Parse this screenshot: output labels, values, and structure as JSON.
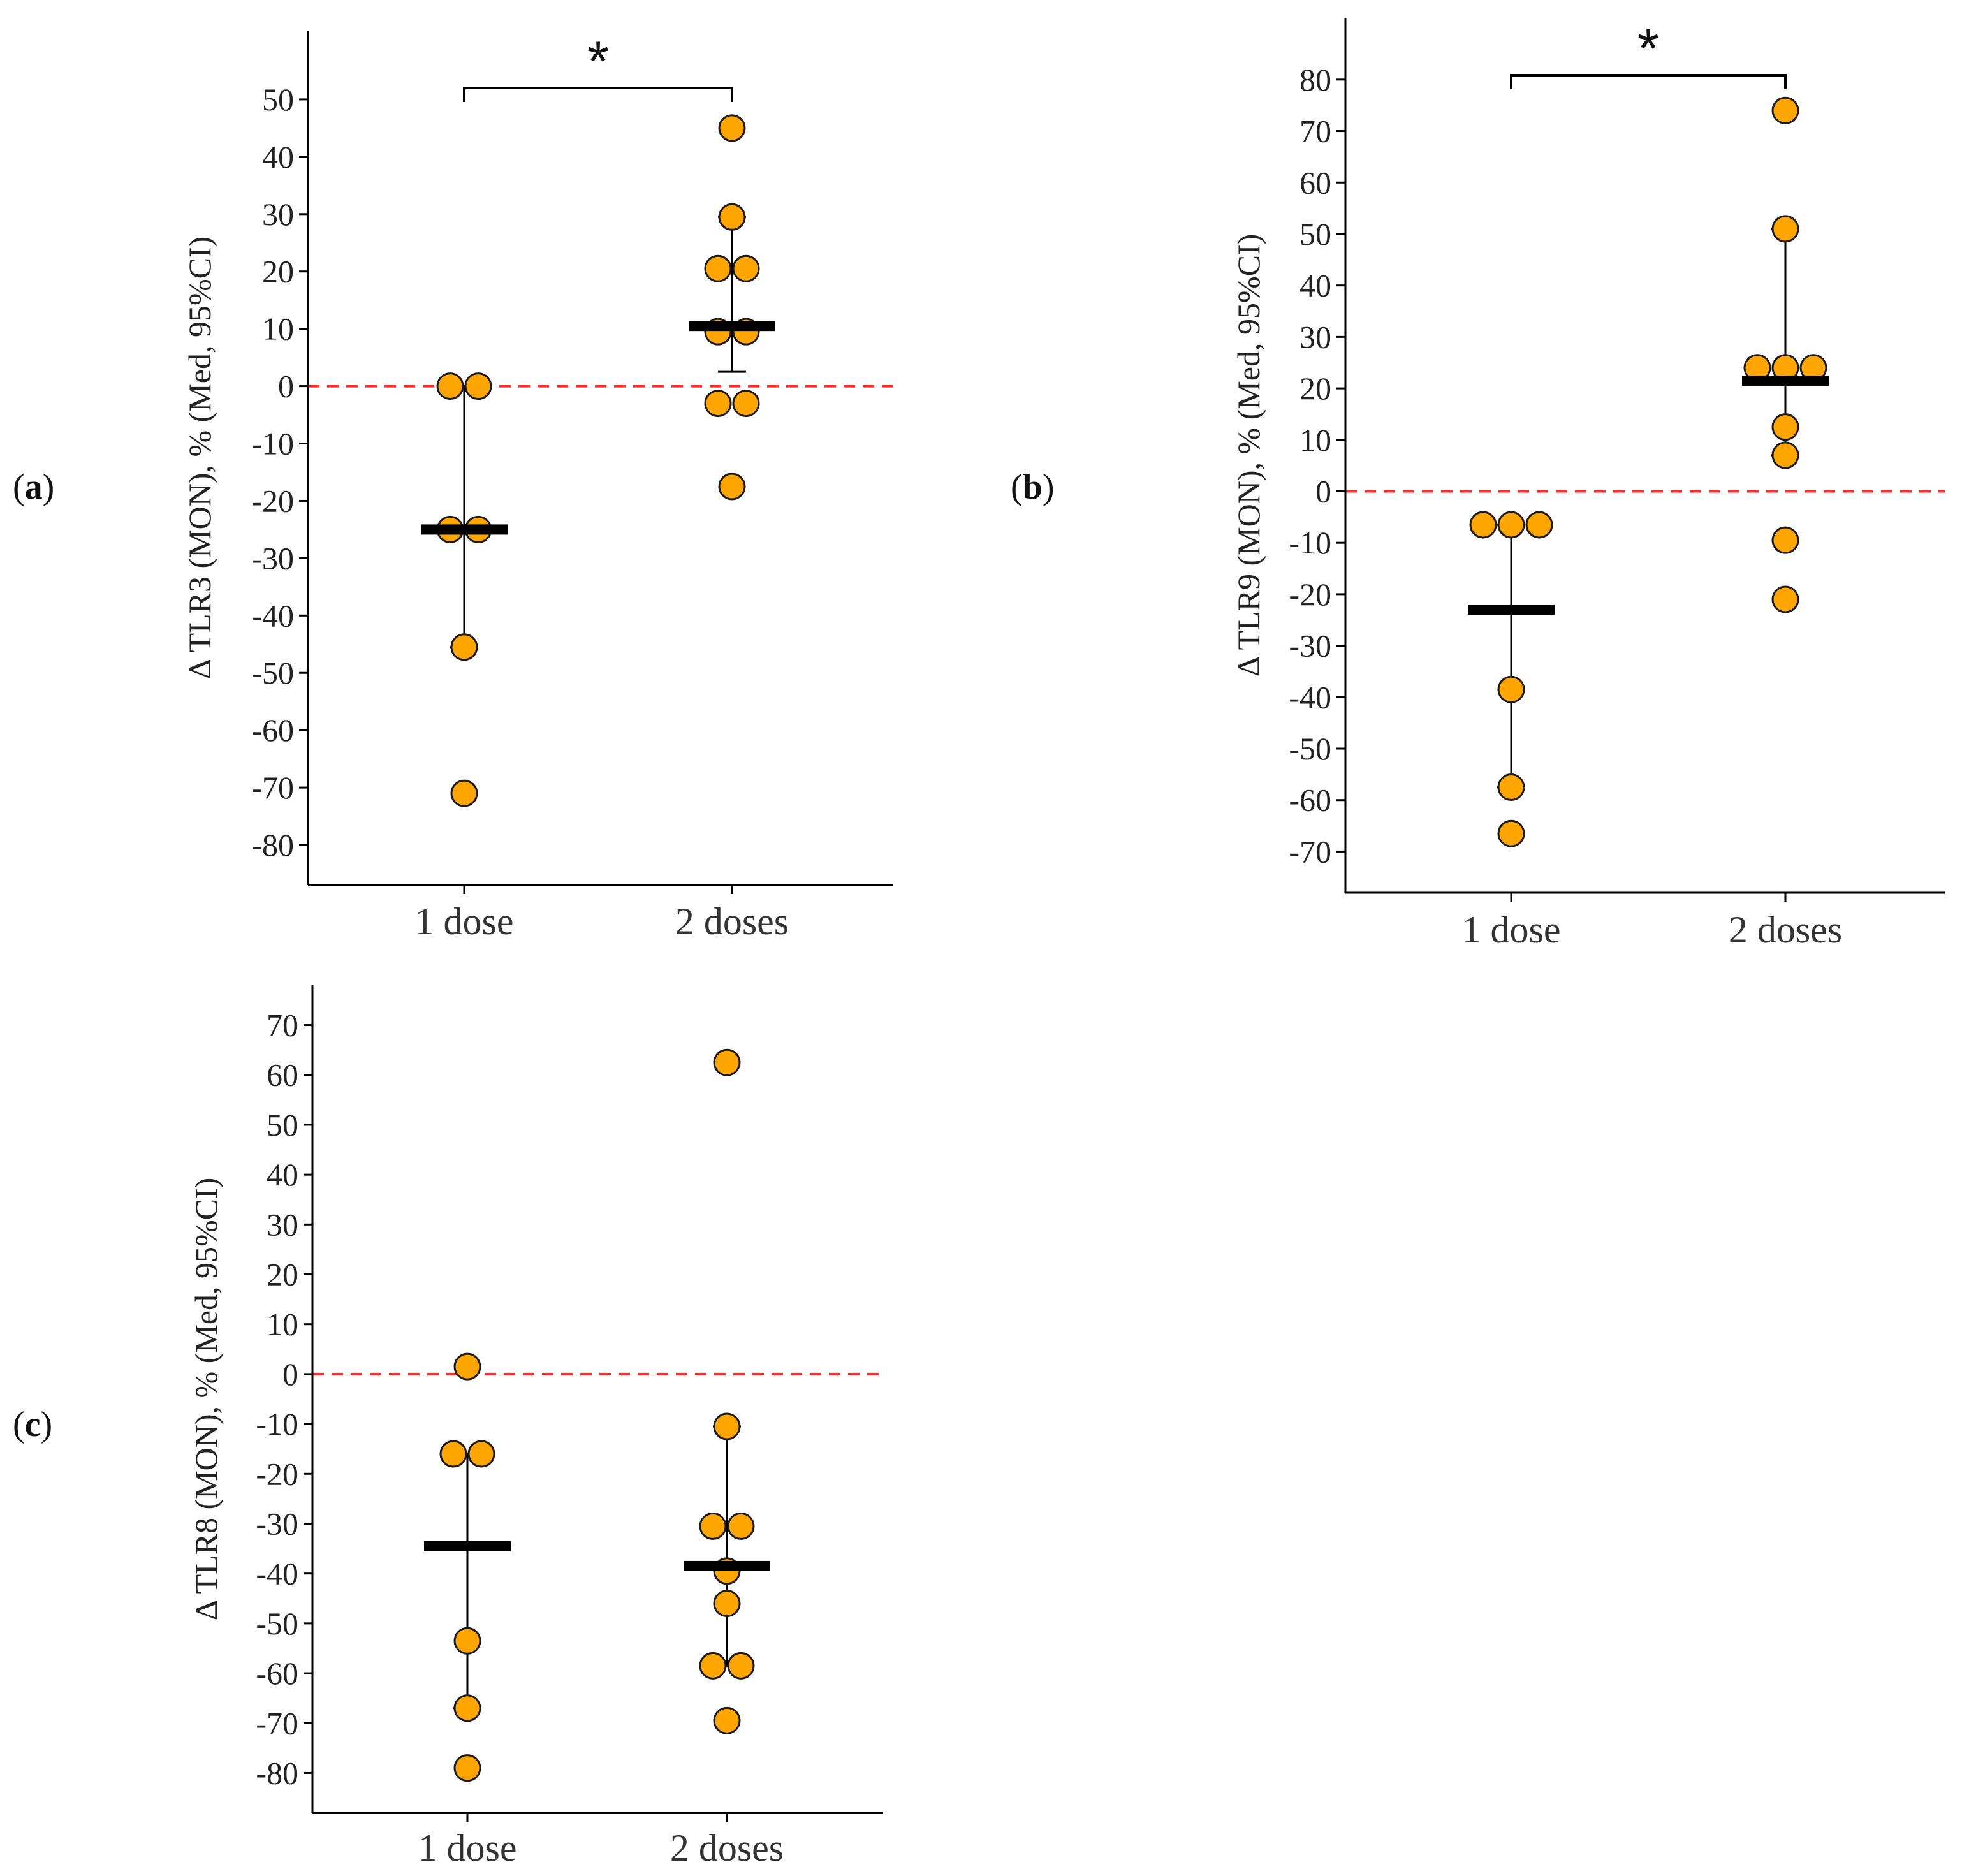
{
  "colors": {
    "point_fill": "#FFA500",
    "point_stroke": "#1a1a1a",
    "median_bar": "#000000",
    "ci_line": "#000000",
    "reference_line": "#FF2A2A",
    "axis": "#000000"
  },
  "chart_data": [
    {
      "type": "scatter",
      "panel_label": "(a)",
      "panel_letter": "a",
      "title": "",
      "xlabel": "",
      "ylabel": "Δ TLR3 (MON), % (Med, 95%CI)",
      "categories": [
        "1 dose",
        "2 doses"
      ],
      "ylim": [
        -87,
        62
      ],
      "yticks": [
        -80,
        -70,
        -60,
        -50,
        -40,
        -30,
        -20,
        -10,
        0,
        10,
        20,
        30,
        40,
        50
      ],
      "reference_line": {
        "y": 0,
        "style": "dashed",
        "color": "red"
      },
      "grid": false,
      "series": [
        {
          "category": "1 dose",
          "points": [
            0,
            0,
            -25,
            -25,
            -45.5,
            -71
          ],
          "median": -25,
          "ci": [
            -45.5,
            0
          ]
        },
        {
          "category": "2 doses",
          "points": [
            45,
            29.5,
            20.5,
            20.5,
            9.5,
            9.5,
            -3,
            -3,
            -17.5
          ],
          "median": 10.5,
          "ci": [
            2.5,
            29.5
          ]
        }
      ],
      "significance": {
        "between": [
          "1 dose",
          "2 doses"
        ],
        "label": "*"
      }
    },
    {
      "type": "scatter",
      "panel_label": "(b)",
      "panel_letter": "b",
      "title": "",
      "xlabel": "",
      "ylabel": "Δ TLR9 (MON), % (Med, 95%CI)",
      "categories": [
        "1 dose",
        "2 doses"
      ],
      "ylim": [
        -78,
        92
      ],
      "yticks": [
        -70,
        -60,
        -50,
        -40,
        -30,
        -20,
        -10,
        0,
        10,
        20,
        30,
        40,
        50,
        60,
        70,
        80
      ],
      "reference_line": {
        "y": 0,
        "style": "dashed",
        "color": "red"
      },
      "grid": false,
      "series": [
        {
          "category": "1 dose",
          "points": [
            -6.5,
            -6.5,
            -6.5,
            -38.5,
            -57.5,
            -66.5
          ],
          "median": -23,
          "ci": [
            -57.5,
            -6.5
          ]
        },
        {
          "category": "2 doses",
          "points": [
            74,
            51,
            24,
            24,
            24,
            12.5,
            7,
            -9.5,
            -21
          ],
          "median": 21.5,
          "ci": [
            7,
            51
          ]
        }
      ],
      "significance": {
        "between": [
          "1 dose",
          "2 doses"
        ],
        "label": "*"
      }
    },
    {
      "type": "scatter",
      "panel_label": "(c)",
      "panel_letter": "c",
      "title": "",
      "xlabel": "",
      "ylabel": "Δ TLR8 (MON), % (Med, 95%CI)",
      "categories": [
        "1 dose",
        "2 doses"
      ],
      "ylim": [
        -88,
        78
      ],
      "yticks": [
        -80,
        -70,
        -60,
        -50,
        -40,
        -30,
        -20,
        -10,
        0,
        10,
        20,
        30,
        40,
        50,
        60,
        70
      ],
      "reference_line": {
        "y": 0,
        "style": "dashed",
        "color": "red"
      },
      "grid": false,
      "series": [
        {
          "category": "1 dose",
          "points": [
            1.5,
            -16,
            -16,
            -53.5,
            -67,
            -79
          ],
          "median": -34.5,
          "ci": [
            -67,
            -16
          ]
        },
        {
          "category": "2 doses",
          "points": [
            62.5,
            -10.5,
            -30.5,
            -30.5,
            -39.5,
            -46,
            -58.5,
            -58.5,
            -69.5
          ],
          "median": -38.5,
          "ci": [
            -58.5,
            -10.5
          ]
        }
      ],
      "significance": null
    }
  ]
}
